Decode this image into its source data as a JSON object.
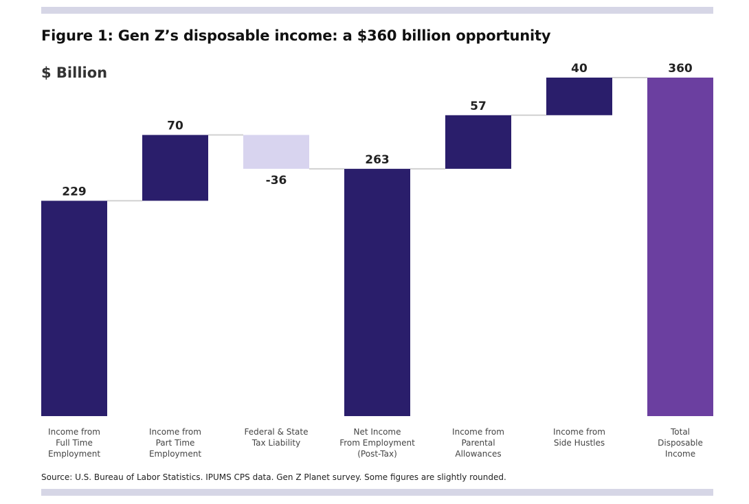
{
  "title": "Figure 1: Gen Z’s disposable income: a $360 billion opportunity",
  "unit_label": "$ Billion",
  "source": "Source: U.S. Bureau of Labor Statistics. IPUMS CPS data. Gen Z Planet survey. Some figures are slightly rounded.",
  "colors": {
    "increase": "#2a1e6b",
    "decrease": "#d8d4ef",
    "total": "#6b3fa0",
    "connector": "#d0d0d0",
    "rule": "#d6d6e6"
  },
  "chart_data": {
    "type": "waterfall",
    "ylim": [
      0,
      360
    ],
    "grid": false,
    "categories": [
      [
        "Income from",
        "Full Time",
        "Employment"
      ],
      [
        "Income from",
        "Part Time",
        "Employment"
      ],
      [
        "Federal & State",
        "Tax Liability"
      ],
      [
        "Net Income",
        "From Employment",
        "(Post-Tax)"
      ],
      [
        "Income from",
        "Parental",
        "Allowances"
      ],
      [
        "Income from",
        "Side Hustles"
      ],
      [
        "Total",
        "Disposable",
        "Income"
      ]
    ],
    "values": [
      229,
      70,
      -36,
      263,
      57,
      40,
      360
    ],
    "data_labels": [
      "229",
      "70",
      "-36",
      "263",
      "57",
      "40",
      "360"
    ],
    "bar_kinds": [
      "total",
      "increase",
      "decrease",
      "total",
      "increase",
      "increase",
      "grand_total"
    ]
  }
}
